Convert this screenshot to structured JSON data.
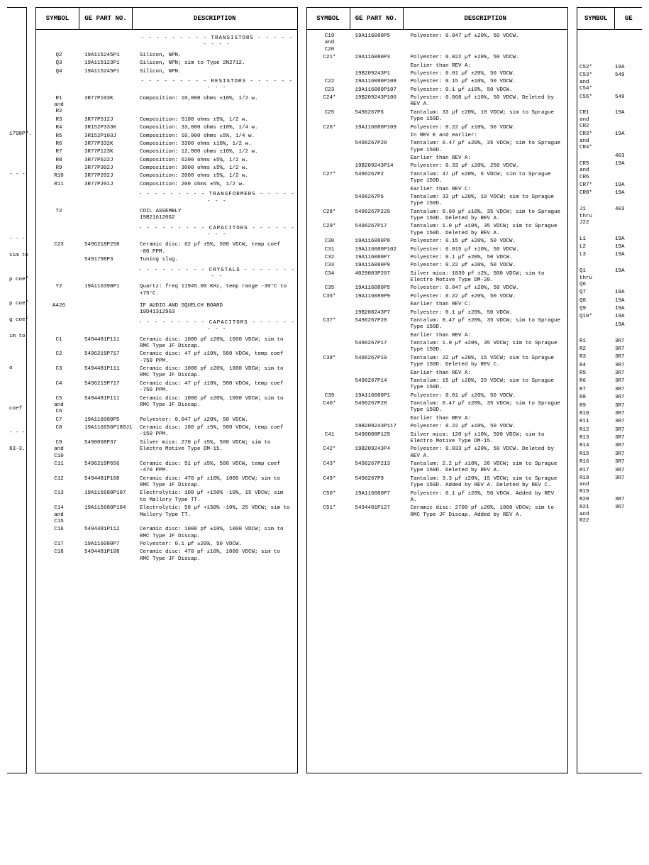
{
  "headers": {
    "symbol": "SYMBOL",
    "part": "GE PART NO.",
    "desc": "DESCRIPTION",
    "partShort": "GE"
  },
  "col0": [
    "",
    "",
    "",
    "",
    "",
    "",
    "",
    "",
    "",
    "",
    "",
    "1798P7.",
    "",
    "",
    "",
    "",
    "- - -",
    "",
    "",
    "",
    "",
    "",
    "",
    "",
    "- - -",
    "",
    "sim to",
    "",
    "",
    "p coef",
    "",
    "",
    "p coef",
    "",
    "g coef",
    "",
    "im to",
    "",
    "",
    "",
    "o",
    "",
    "",
    "",
    "",
    "coef",
    "",
    "",
    "- - -",
    "",
    "83-3.",
    "",
    "",
    "",
    "",
    "",
    ""
  ],
  "col1": [
    {
      "t": "sep",
      "v": "- - - - - - - - - TRANSISTORS - - - - - - - - -"
    },
    {
      "s": "Q2",
      "p": "19A115245P1",
      "d": "Silicon, NPN."
    },
    {
      "s": "Q3",
      "p": "19A115123P1",
      "d": "Silicon, NPN; sim to Type 2N2712."
    },
    {
      "s": "Q4",
      "p": "19A115245P1",
      "d": "Silicon, NPN."
    },
    {
      "t": "sep",
      "v": "- - - - - - - - - RESISTORS - - - - - - - - -"
    },
    {
      "s": "R1\nand\nR2",
      "p": "3R77P103K",
      "d": "Composition: 10,000 ohms ±10%, 1/2 w."
    },
    {
      "s": "R3",
      "p": "3R77P512J",
      "d": "Composition: 5100 ohms ±5%, 1/2 w."
    },
    {
      "s": "R4",
      "p": "3R152P333K",
      "d": "Composition: 33,000 ohms ±10%, 1/4 w."
    },
    {
      "s": "R5",
      "p": "3R152P103J",
      "d": "Composition: 10,000 ohms ±5%, 1/4 w."
    },
    {
      "s": "R6",
      "p": "3R77P332K",
      "d": "Composition: 3300 ohms ±10%, 1/2 w."
    },
    {
      "s": "R7",
      "p": "3R77P123K",
      "d": "Composition: 12,000 ohms ±10%, 1/2 w."
    },
    {
      "s": "R8",
      "p": "3R77P622J",
      "d": "Composition: 6200 ohms ±5%, 1/2 w."
    },
    {
      "s": "R9",
      "p": "3R77P302J",
      "d": "Composition: 3000 ohms ±5%, 1/2 w."
    },
    {
      "s": "R10",
      "p": "3R77P202J",
      "d": "Composition: 2000 ohms ±5%, 1/2 w."
    },
    {
      "s": "R11",
      "p": "3R77P201J",
      "d": "Composition: 200 ohms ±5%, 1/2 w."
    },
    {
      "t": "sep",
      "v": "- - - - - - - - - TRANSFORMERS - - - - - - - -"
    },
    {
      "s": "T2",
      "p": "",
      "d": "COIL ASSEMBLY\n19B216120G2"
    },
    {
      "t": "sep",
      "v": "- - - - - - - - - CAPACITORS - - - - - - - - -"
    },
    {
      "s": "C23",
      "p": "5496218P258",
      "d": "Ceramic disc: 62 pf ±5%, 500 VDCW, temp coef -80 PPM."
    },
    {
      "s": "",
      "p": "5491798P3",
      "d": "Tuning slug."
    },
    {
      "t": "sep",
      "v": "- - - - - - - - - CRYSTALS - - - - - - - - -"
    },
    {
      "s": "Y2",
      "p": "19A116398P1",
      "d": "Quartz: freq 11945.00 KHz, temp range -30°C to +75°C."
    },
    {
      "t": "spacer"
    },
    {
      "s": "A426",
      "p": "",
      "d": "IF AUDIO AND SQUELCH BOARD\n19D413129G3"
    },
    {
      "t": "sep",
      "v": "- - - - - - - - - CAPACITORS - - - - - - - - -"
    },
    {
      "s": "C1",
      "p": "5494481P111",
      "d": "Ceramic disc: 1000 pf ±20%, 1000 VDCW; sim to RMC Type JF Discap."
    },
    {
      "s": "C2",
      "p": "5496219P717",
      "d": "Ceramic disc: 47 pf ±10%, 500 VDCW, temp coef -750 PPM."
    },
    {
      "s": "C3",
      "p": "5494481P111",
      "d": "Ceramic disc: 1000 pf ±20%, 1000 VDCW; sim to RMC Type JF Discap."
    },
    {
      "s": "C4",
      "p": "5496219P717",
      "d": "Ceramic disc: 47 pf ±10%, 500 VDCW, temp coef -750 PPM."
    },
    {
      "s": "C5\nand\nC6",
      "p": "5494481P111",
      "d": "Ceramic disc: 1000 pf ±20%, 1000 VDCW; sim to RMC Type JF Discap."
    },
    {
      "s": "C7",
      "p": "19A116080P5",
      "d": "Polyester: 0.047 µf ±20%, 50 VDCW."
    },
    {
      "s": "C8",
      "p": "19A116656P180J1",
      "d": "Ceramic disc: 180 pf ±5%, 500 VDCW, temp coef -150 PPM."
    },
    {
      "s": "C9\nand\nC10",
      "p": "5490008P37",
      "d": "Silver mica: 270 pf ±5%, 500 VDCW; sim to Electro Motive Type DM-15."
    },
    {
      "s": "C11",
      "p": "5496219P656",
      "d": "Ceramic disc: 51 pf ±5%, 500 VDCW, temp coef -470 PPM."
    },
    {
      "s": "C12",
      "p": "5494481P108",
      "d": "Ceramic disc: 470 pf ±10%, 1000 VDCW; sim to RMC Type JF Discap."
    },
    {
      "s": "C13",
      "p": "19A115680P107",
      "d": "Electrolytic: 100 µf +150% -10%, 15 VDCW; sim to Mallory Type TT."
    },
    {
      "s": "C14\nand\nC15",
      "p": "19A115680P104",
      "d": "Electrolytic: 50 µf +150% -10%, 25 VDCW; sim to Mallory Type TT."
    },
    {
      "s": "C16",
      "p": "5494481P112",
      "d": "Ceramic disc: 1000 pf ±10%, 1000 VDCW; sim to RMC Type JF Discap."
    },
    {
      "s": "C17",
      "p": "19A116080P7",
      "d": "Polyester: 0.1 µf ±20%, 50 VDCW."
    },
    {
      "s": "C18",
      "p": "5494481P108",
      "d": "Ceramic disc: 470 pf ±10%, 1000 VDCW; sim to RMC Type JF Discap."
    }
  ],
  "col2": [
    {
      "s": "C19\nand\nC20",
      "p": "19A116080P5",
      "d": "Polyester: 0.047 µf ±20%, 50 VDCW."
    },
    {
      "s": "C21*",
      "p": "19A116080P3",
      "d": "Polyester: 0.022 µf ±20%, 50 VDCW."
    },
    {
      "s": "",
      "p": "",
      "d": "Earlier than REV A:"
    },
    {
      "s": "",
      "p": "19B209243P1",
      "d": "Polyester: 0.01 µf ±20%, 50 VDCW."
    },
    {
      "s": "C22",
      "p": "19A116080P108",
      "d": "Polyester: 0.15 µf ±10%, 50 VDCW."
    },
    {
      "s": "C23",
      "p": "19A116080P107",
      "d": "Polyester: 0.1 µf ±10%, 50 VDCW."
    },
    {
      "s": "C24*",
      "p": "19B209243P106",
      "d": "Polyester: 0.068 µf ±10%, 50 VDCW. Deleted by REV A."
    },
    {
      "s": "C25",
      "p": "5496267P6",
      "d": "Tantalum: 33 µf ±20%, 10 VDCW; sim to Sprague Type 150D."
    },
    {
      "s": "C26*",
      "p": "19A116080P109",
      "d": "Polyester: 0.22 µf ±10%, 50 VDCW."
    },
    {
      "s": "",
      "p": "",
      "d": "In REV E and earlier:"
    },
    {
      "s": "",
      "p": "5496267P28",
      "d": "Tantalum: 0.47 µf ±20%, 35 VDCW; sim to Sprague Type 150D."
    },
    {
      "s": "",
      "p": "",
      "d": "Earlier than REV A:"
    },
    {
      "s": "",
      "p": "19B209243P14",
      "d": "Polyester: 0.33 µf ±20%, 250 VDCW."
    },
    {
      "s": "C27*",
      "p": "5496267P2",
      "d": "Tantalum: 47 µf ±20%, 6 VDCW; sim to Sprague Type 150D."
    },
    {
      "s": "",
      "p": "",
      "d": "Earlier than REV C:"
    },
    {
      "s": "",
      "p": "5496267P6",
      "d": "Tantalum: 33 µf ±20%, 10 VDCW; sim to Sprague Type 150D."
    },
    {
      "s": "C28*",
      "p": "5496267P229",
      "d": "Tantalum: 0.68 µf ±10%, 35 VDCW; sim to Sprague Type 150D. Deleted by REV A."
    },
    {
      "s": "C29*",
      "p": "5496267P17",
      "d": "Tantalum: 1.0 µf ±10%, 35 VDCW; sim to Sprague Type 150D. Deleted by REV A."
    },
    {
      "s": "C30",
      "p": "19A116080P8",
      "d": "Polyester: 0.15 µf ±20%, 50 VDCW."
    },
    {
      "s": "C31",
      "p": "19A116080P102",
      "d": "Polyester: 0.015 µf ±10%, 50 VDCW."
    },
    {
      "s": "C32",
      "p": "19A116080P7",
      "d": "Polyester: 0.1 µf ±20%, 50 VDCW."
    },
    {
      "s": "C33",
      "p": "19A116080P9",
      "d": "Polyester: 0.22 µf ±20%, 50 VDCW."
    },
    {
      "s": "C34",
      "p": "4029003P207",
      "d": "Silver mica: 1830 pf ±2%, 500 VDCW; sim to Electro Motive Type DM-20."
    },
    {
      "s": "C35",
      "p": "19A116080P5",
      "d": "Polyester: 0.047 µf ±20%, 50 VDCW."
    },
    {
      "s": "C36*",
      "p": "19A116080P9",
      "d": "Polyester: 0.22 µf ±20%, 50 VDCW."
    },
    {
      "s": "",
      "p": "",
      "d": "Earlier than REV C:"
    },
    {
      "s": "",
      "p": "19B208243P7",
      "d": "Polyester: 0.1 µf ±20%, 50 VDCW."
    },
    {
      "s": "C37*",
      "p": "5496267P28",
      "d": "Tantalum: 0.47 µf ±20%, 35 VDCW; sim to Sprague Type 150D."
    },
    {
      "s": "",
      "p": "",
      "d": "Earlier than REV A:"
    },
    {
      "s": "",
      "p": "5496267P17",
      "d": "Tantalum: 1.0 µf ±20%, 35 VDCW; sim to Sprague Type 150D."
    },
    {
      "s": "C38*",
      "p": "5496267P10",
      "d": "Tantalum: 22 µf ±20%, 15 VDCW; sim to Sprague Type 150D. Deleted by REV C."
    },
    {
      "s": "",
      "p": "",
      "d": "Earlier than REV A:"
    },
    {
      "s": "",
      "p": "5496267P14",
      "d": "Tantalum: 15 µf ±20%, 20 VDCW; sim to Sprague Type 150D."
    },
    {
      "s": "C39",
      "p": "19A116080P1",
      "d": "Polyester: 0.01 µf ±20%, 50 VDCW."
    },
    {
      "s": "C40*",
      "p": "5496267P28",
      "d": "Tantalum: 0.47 µf ±20%, 35 VDCW; sim to Sprague Type 150D."
    },
    {
      "s": "",
      "p": "",
      "d": "Earlier than REV A:"
    },
    {
      "s": "",
      "p": "19B209243P117",
      "d": "Polyester: 0.22 µf ±10%, 50 VDCW."
    },
    {
      "s": "C41",
      "p": "5490008P129",
      "d": "Silver mica: 120 pf ±10%, 500 VDCW; sim to Electro Motive Type DM-15."
    },
    {
      "s": "C42*",
      "p": "19B209243P4",
      "d": "Polyester: 0.033 µf ±20%, 50 VDCW. Deleted by REV A."
    },
    {
      "s": "C43*",
      "p": "5496267P213",
      "d": "Tantalum: 2.2 µf ±10%, 20 VDCW; sim to Sprague Type 150D. Deleted by REV A."
    },
    {
      "s": "C49*",
      "p": "5496267P9",
      "d": "Tantalum: 3.3 µf ±20%, 15 VDCW; sim to Sprague Type 150D. Added by REV A. Deleted by REV C."
    },
    {
      "s": "C50*",
      "p": "19A116080P7",
      "d": "Polyester: 0.1 µf ±20%, 50 VDCW. Added by REV A."
    },
    {
      "s": "C51*",
      "p": "5494481P127",
      "d": "Ceramic disc: 2700 pf ±20%, 1000 VDCW; sim to RMC Type JF Discap. Added by REV A."
    }
  ],
  "col3": [
    {
      "s": "C52*",
      "p": "19A"
    },
    {
      "s": "C53*\nand\nC54*",
      "p": "549"
    },
    {
      "s": "C55*",
      "p": "549"
    },
    {
      "s": "",
      "p": ""
    },
    {
      "s": "CR1\nand\nCR2",
      "p": "19A"
    },
    {
      "s": "CR3*\nand\nCR4*",
      "p": "19A"
    },
    {
      "s": "",
      "p": "403"
    },
    {
      "s": "CR5\nand\nCR6",
      "p": "19A"
    },
    {
      "s": "CR7*",
      "p": "19A"
    },
    {
      "s": "CR8*",
      "p": "19A"
    },
    {
      "s": "",
      "p": ""
    },
    {
      "s": "J1\nthru\nJ22",
      "p": "403"
    },
    {
      "s": "",
      "p": ""
    },
    {
      "s": "L1",
      "p": "19A"
    },
    {
      "s": "L2",
      "p": "19A"
    },
    {
      "s": "L3",
      "p": "19A"
    },
    {
      "s": "",
      "p": ""
    },
    {
      "s": "Q1\nthru\nQ6",
      "p": "19A"
    },
    {
      "s": "Q7",
      "p": "19A"
    },
    {
      "s": "Q8",
      "p": "19A"
    },
    {
      "s": "Q9",
      "p": "19A"
    },
    {
      "s": "Q10*",
      "p": "19A"
    },
    {
      "s": "",
      "p": "19A"
    },
    {
      "s": "",
      "p": ""
    },
    {
      "s": "R1",
      "p": "3R7"
    },
    {
      "s": "R2",
      "p": "3R7"
    },
    {
      "s": "R3",
      "p": "3R7"
    },
    {
      "s": "R4",
      "p": "3R7"
    },
    {
      "s": "R5",
      "p": "3R7"
    },
    {
      "s": "R6",
      "p": "3R7"
    },
    {
      "s": "R7",
      "p": "3R7"
    },
    {
      "s": "R8",
      "p": "3R7"
    },
    {
      "s": "R9",
      "p": "3R7"
    },
    {
      "s": "R10",
      "p": "3R7"
    },
    {
      "s": "R11",
      "p": "3R7"
    },
    {
      "s": "R12",
      "p": "3R7"
    },
    {
      "s": "R13",
      "p": "3R7"
    },
    {
      "s": "R14",
      "p": "3R7"
    },
    {
      "s": "R15",
      "p": "3R7"
    },
    {
      "s": "R16",
      "p": "3R7"
    },
    {
      "s": "R17",
      "p": "3R7"
    },
    {
      "s": "R18\nand\nR19",
      "p": "3R7"
    },
    {
      "s": "R20",
      "p": "3R7"
    },
    {
      "s": "R21\nand\nR22",
      "p": "3R7"
    }
  ]
}
